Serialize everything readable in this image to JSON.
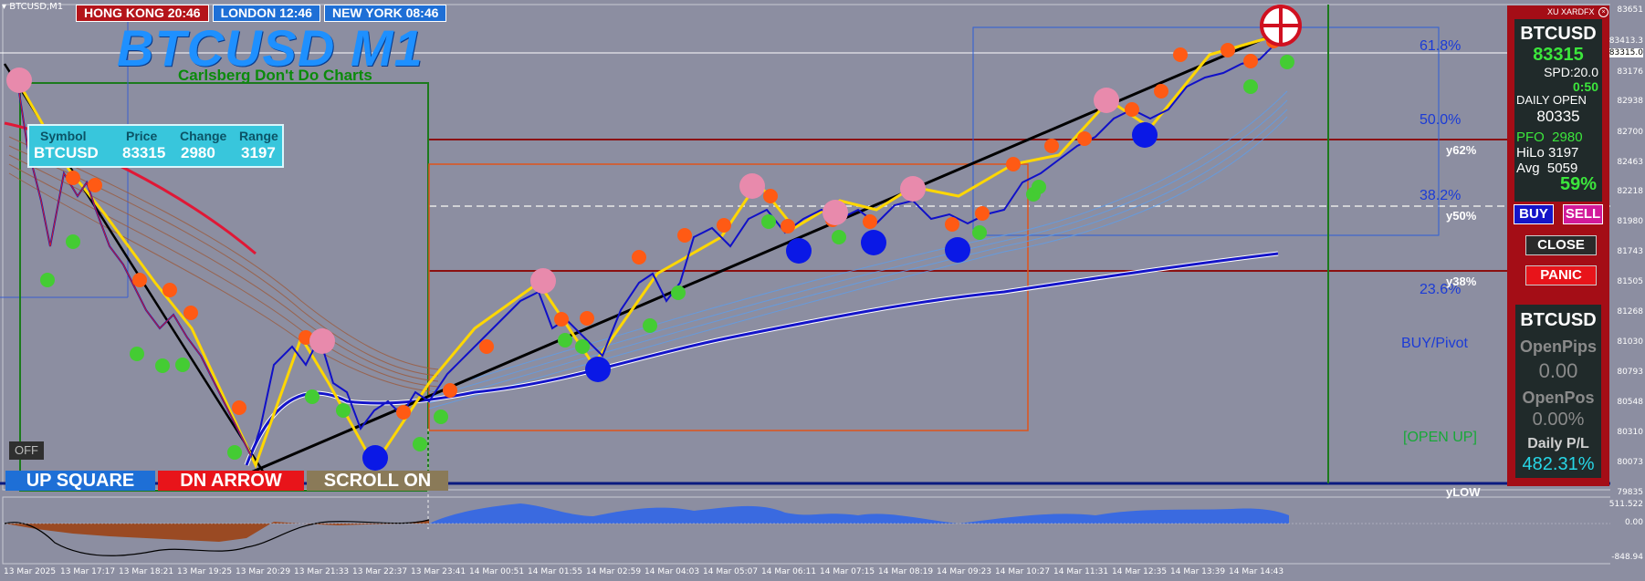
{
  "window": {
    "tab_title": "BTCUSD,M1",
    "chart_title": "BTCUSD M1",
    "subtitle": "Carlsberg Don't Do Charts",
    "xu_label": "XU XARDFX"
  },
  "clocks": [
    {
      "label": "HONG KONG 20:46",
      "color": "#b4141a"
    },
    {
      "label": "LONDON 12:46",
      "color": "#1e6fd6"
    },
    {
      "label": "NEW YORK 08:46",
      "color": "#1e6fd6"
    }
  ],
  "symbol_table": {
    "headers": [
      "Symbol",
      "Price",
      "Change",
      "Range"
    ],
    "values": [
      "BTCUSD",
      "83315",
      "2980",
      "3197"
    ]
  },
  "fib_labels": {
    "f618": "61.8%",
    "f500": "50.0%",
    "f382": "38.2%",
    "f236": "23.6%"
  },
  "level_labels": {
    "y62": "y62%",
    "y50": "y50%",
    "y38": "y38%",
    "ylow": "yLOW",
    "buy_pivot": "BUY/Pivot",
    "open_up": "[OPEN UP]"
  },
  "buttons": {
    "off": "OFF",
    "up_square": "UP SQUARE",
    "dn_arrow": "DN ARROW",
    "scroll_on": "SCROLL ON",
    "buy": "BUY",
    "sell": "SELL",
    "close": "CLOSE",
    "panic": "PANIC"
  },
  "info_panel": {
    "symbol": "BTCUSD",
    "price": "83315",
    "spread": "SPD:20.0",
    "timer": "0:50",
    "daily_open_label": "DAILY OPEN",
    "daily_open_value": "80335",
    "pfo": "PFO  2980",
    "hilo": "HiLo 3197",
    "avg": "Avg  5059",
    "pct": "59%"
  },
  "stats_panel": {
    "symbol": "BTCUSD",
    "open_pips_label": "OpenPips",
    "open_pips_value": "0.00",
    "open_pos_label": "OpenPos",
    "open_pos_value": "0.00%",
    "daily_pl_label": "Daily P/L",
    "daily_pl_value": "482.31%"
  },
  "price_axis": [
    "83651",
    "83413.3",
    "83315.0",
    "83176",
    "82938",
    "82700",
    "82463",
    "82218",
    "81980",
    "81743",
    "81505",
    "81268",
    "81030",
    "80793",
    "80548",
    "80310",
    "80073",
    "79835",
    "511.522",
    "0.00",
    "-848.94"
  ],
  "time_axis": [
    "13 Mar 2025",
    "13 Mar 17:17",
    "13 Mar 18:21",
    "13 Mar 19:25",
    "13 Mar 20:29",
    "13 Mar 21:33",
    "13 Mar 22:37",
    "13 Mar 23:41",
    "14 Mar 00:51",
    "14 Mar 01:55",
    "14 Mar 02:59",
    "14 Mar 04:03",
    "14 Mar 05:07",
    "14 Mar 06:11",
    "14 Mar 07:15",
    "14 Mar 08:19",
    "14 Mar 09:23",
    "14 Mar 10:27",
    "14 Mar 11:31",
    "14 Mar 12:35",
    "14 Mar 13:39",
    "14 Mar 14:43"
  ],
  "colors": {
    "bg": "#8c8ea1",
    "up_dot": "#44cc33",
    "dn_dot": "#ff5a14",
    "price": "#1010c8",
    "ma": "#1a1aff",
    "panel": "#a40d16"
  }
}
